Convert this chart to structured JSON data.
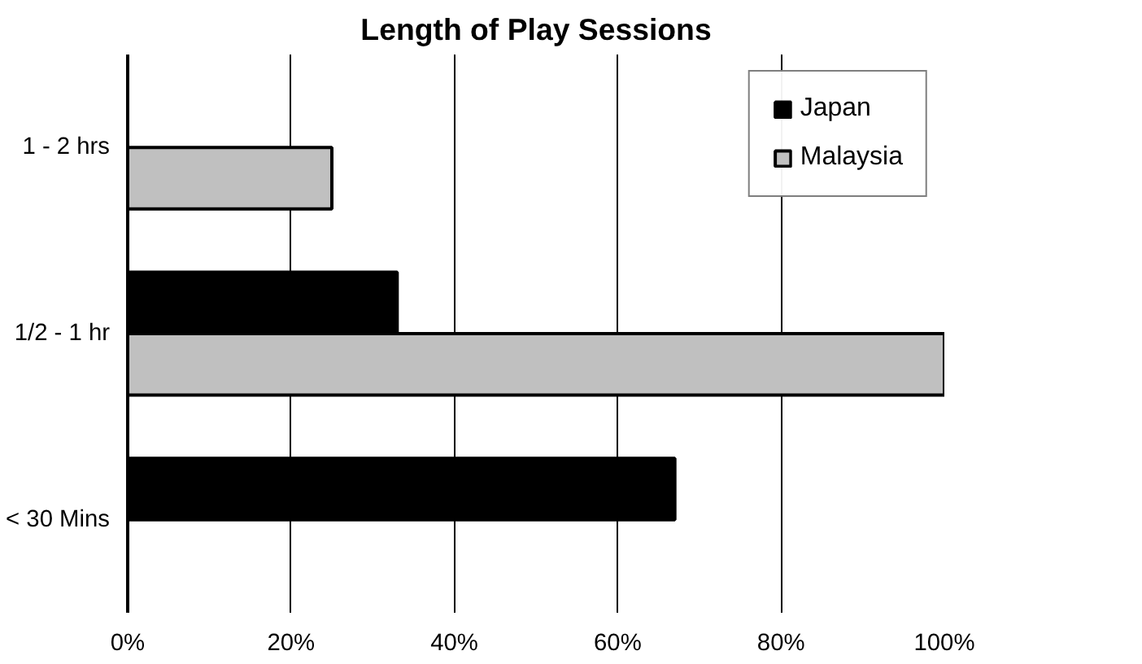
{
  "chart_data": {
    "type": "bar",
    "orientation": "horizontal",
    "title": "Length of Play Sessions",
    "categories": [
      "1 - 2 hrs",
      "1/2 - 1 hr",
      "< 30 Mins"
    ],
    "series": [
      {
        "name": "Japan",
        "color": "#000000",
        "values": [
          null,
          33,
          67
        ]
      },
      {
        "name": "Malaysia",
        "color": "#c0c0c0",
        "values": [
          25,
          100,
          null
        ]
      }
    ],
    "xlim": [
      0,
      100
    ],
    "xticks": [
      {
        "value": 0,
        "label": "0%"
      },
      {
        "value": 20,
        "label": "20%"
      },
      {
        "value": 40,
        "label": "40%"
      },
      {
        "value": 60,
        "label": "60%"
      },
      {
        "value": 80,
        "label": "80%"
      },
      {
        "value": 100,
        "label": "100%"
      }
    ],
    "grid": "x",
    "legend": "top right"
  }
}
